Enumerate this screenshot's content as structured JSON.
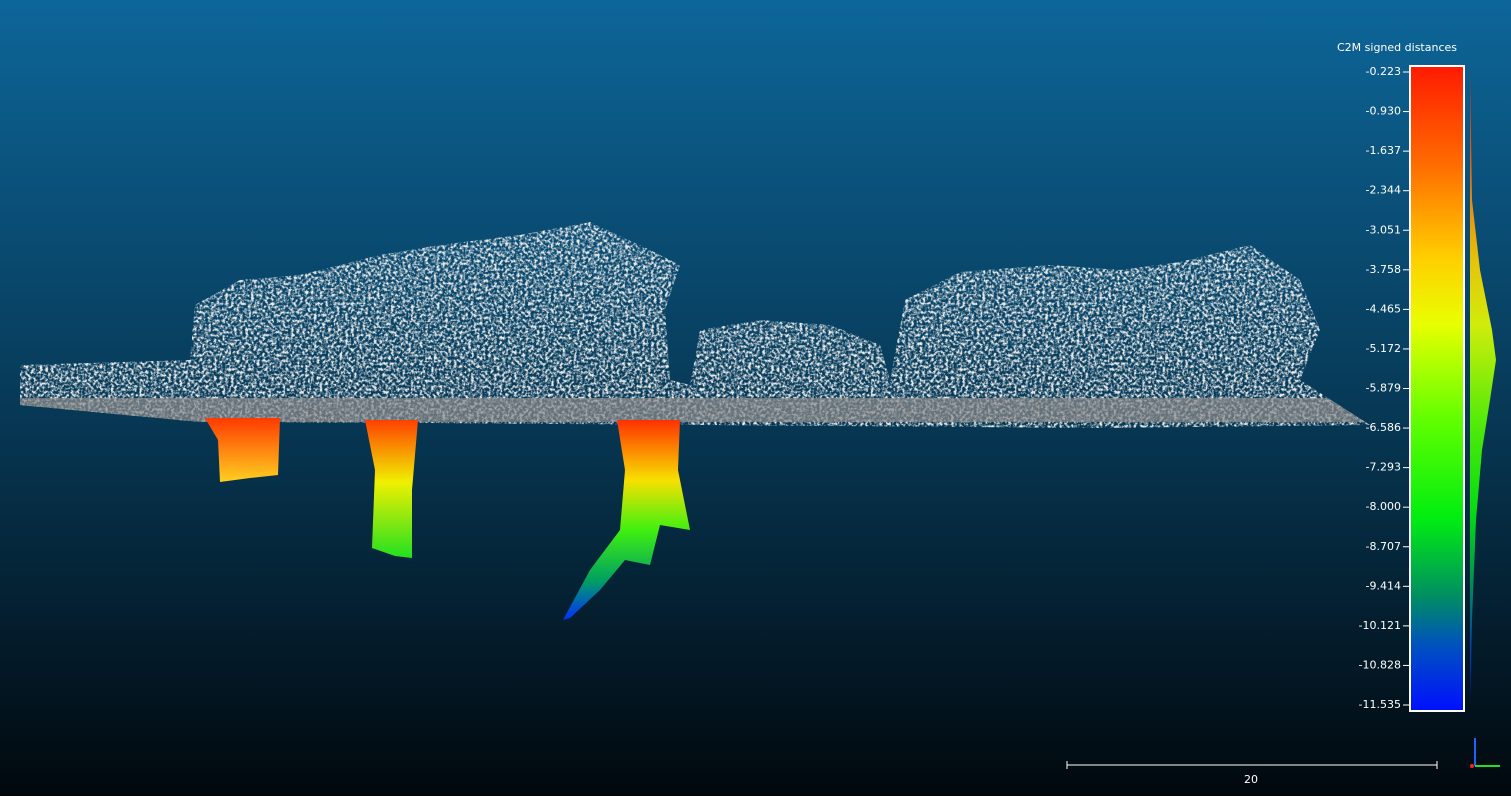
{
  "colorbar": {
    "title": "C2M signed distances",
    "labels": [
      "-0.223",
      "-0.930",
      "-1.637",
      "-2.344",
      "-3.051",
      "-3.758",
      "-4.465",
      "-5.172",
      "-5.879",
      "-6.586",
      "-7.293",
      "-8.000",
      "-8.707",
      "-9.414",
      "-10.121",
      "-10.828",
      "-11.535"
    ]
  },
  "scale_bar": {
    "label": "20"
  }
}
